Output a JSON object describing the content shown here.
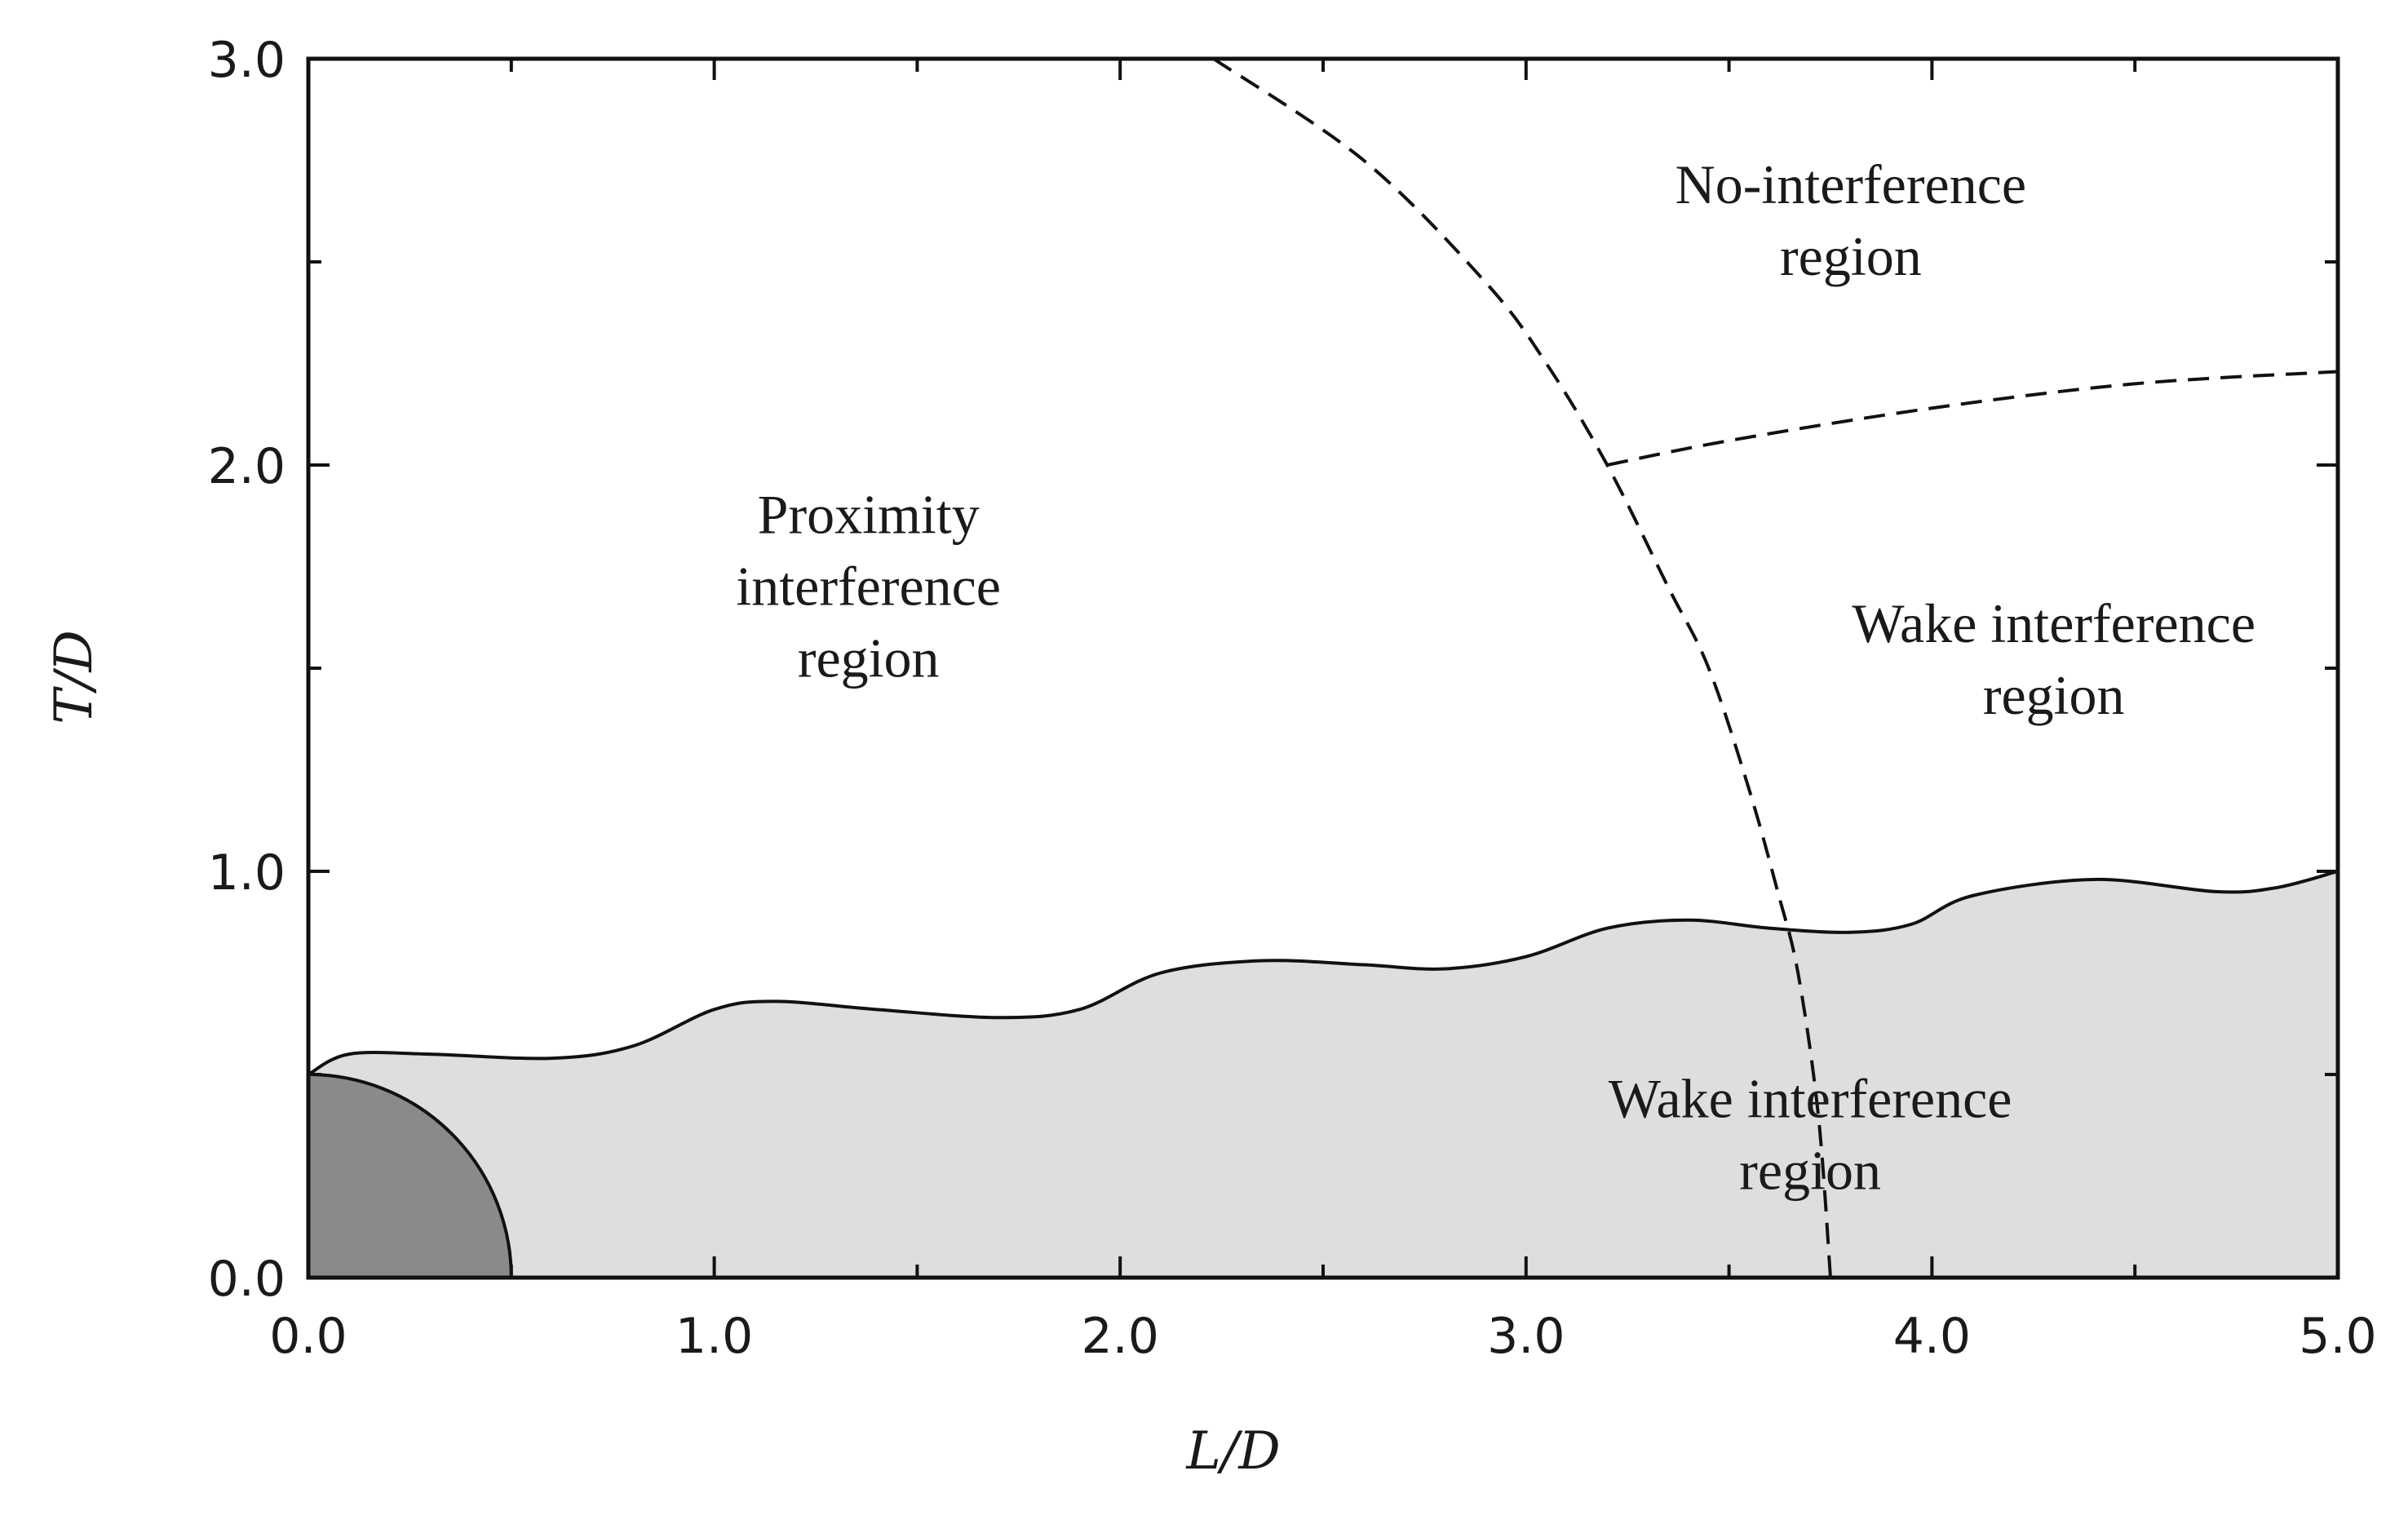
{
  "chart_data": {
    "type": "area",
    "title": "",
    "xlabel": "L/D",
    "ylabel": "T/D",
    "xlim": [
      0,
      5
    ],
    "ylim": [
      0,
      3
    ],
    "grid": false,
    "x_ticks": [
      "0.0",
      "1.0",
      "2.0",
      "3.0",
      "4.0",
      "5.0"
    ],
    "y_ticks": [
      "0.0",
      "1.0",
      "2.0",
      "3.0"
    ],
    "x_tick_values": [
      0,
      1,
      2,
      3,
      4,
      5
    ],
    "y_tick_values": [
      0,
      1,
      2,
      3
    ],
    "series": [
      {
        "name": "wake-boundary",
        "style": "solid-filled",
        "x": [
          0.0,
          0.1,
          0.3,
          0.6,
          0.8,
          1.0,
          1.15,
          1.4,
          1.7,
          1.9,
          2.1,
          2.35,
          2.6,
          2.8,
          3.0,
          3.2,
          3.4,
          3.6,
          3.8,
          3.95,
          4.1,
          4.4,
          4.7,
          4.85,
          5.0
        ],
        "y": [
          0.5,
          0.55,
          0.55,
          0.54,
          0.57,
          0.66,
          0.68,
          0.66,
          0.64,
          0.66,
          0.75,
          0.78,
          0.77,
          0.76,
          0.79,
          0.86,
          0.88,
          0.86,
          0.85,
          0.87,
          0.94,
          0.98,
          0.95,
          0.96,
          1.0
        ]
      },
      {
        "name": "cylinder-quarter",
        "style": "filled-dark",
        "radius": 0.5
      },
      {
        "name": "proximity-boundary",
        "style": "dashed",
        "x": [
          2.23,
          2.6,
          2.9,
          3.05,
          3.2,
          3.35,
          3.45,
          3.55,
          3.62,
          3.67,
          3.72,
          3.75
        ],
        "y": [
          3.0,
          2.75,
          2.45,
          2.25,
          2.0,
          1.7,
          1.5,
          1.2,
          0.95,
          0.75,
          0.4,
          0.0
        ]
      },
      {
        "name": "no-interference-boundary",
        "style": "dashed",
        "x": [
          3.2,
          3.5,
          4.0,
          4.5,
          5.0
        ],
        "y": [
          2.0,
          2.06,
          2.14,
          2.2,
          2.23
        ]
      }
    ],
    "annotations": [
      {
        "id": "no-interference",
        "lines": [
          "No-interference",
          "region"
        ],
        "x": 3.8,
        "y": 2.6
      },
      {
        "id": "proximity",
        "lines": [
          "Proximity",
          "interference",
          "region"
        ],
        "x": 1.38,
        "y": 1.7
      },
      {
        "id": "wake-upper",
        "lines": [
          "Wake interference",
          "region"
        ],
        "x": 4.3,
        "y": 1.52
      },
      {
        "id": "wake-lower",
        "lines": [
          "Wake interference",
          "region"
        ],
        "x": 3.7,
        "y": 0.35
      }
    ],
    "colors": {
      "wake_fill": "#dedede",
      "cylinder_fill": "#8a8a8a",
      "line": "#111111",
      "frame": "#111111"
    }
  }
}
